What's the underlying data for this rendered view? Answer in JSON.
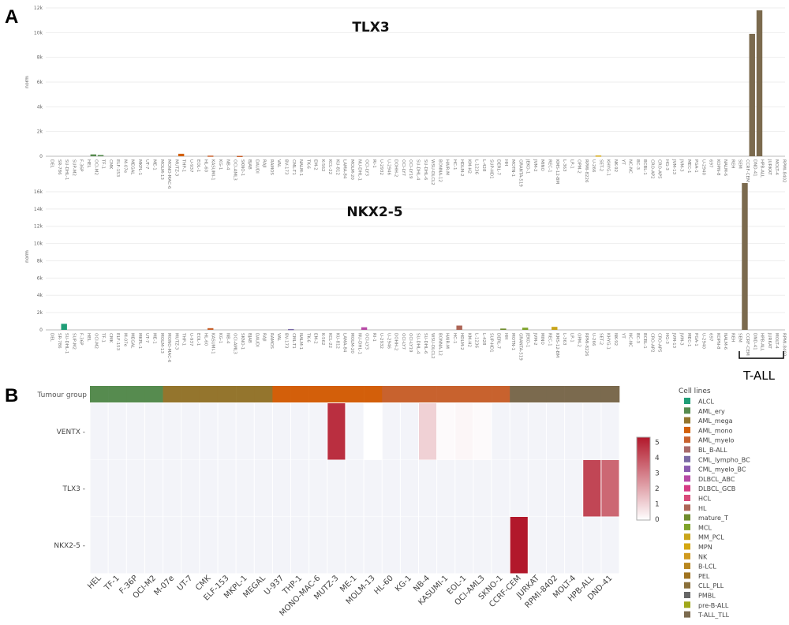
{
  "panels": {
    "a": "A",
    "b": "B"
  },
  "groups": [
    {
      "name": "ALCL",
      "color": "#1f9e77",
      "members": [
        "DEL",
        "SR-786",
        "SU-DHL-1",
        "SUP-M2"
      ]
    },
    {
      "name": "AML_ery",
      "color": "#568b4f",
      "members": [
        "F-36P",
        "HEL",
        "OCI-M2",
        "TF-1"
      ]
    },
    {
      "name": "AML_mega",
      "color": "#94752d",
      "members": [
        "CMK",
        "ELF-153",
        "M-07e",
        "MEGAL",
        "MKPL-1",
        "UT-7"
      ]
    },
    {
      "name": "AML_mono",
      "color": "#d35f0a",
      "members": [
        "ME-1",
        "MOLM-13",
        "MONO-MAC-6",
        "MUTZ-3",
        "THP-1",
        "U-937"
      ]
    },
    {
      "name": "AML_myelo",
      "color": "#c8622e",
      "members": [
        "EOL-1",
        "HL-60",
        "KASUMI-1",
        "KG-1",
        "NB-4",
        "OCI-AML3",
        "SKNO-1"
      ]
    },
    {
      "name": "BL_B-ALL",
      "color": "#a86a6a",
      "members": [
        "BJAB",
        "DAUDI",
        "RAJI",
        "RAMOS",
        "VAL"
      ]
    },
    {
      "name": "CML_lympho_BC",
      "color": "#7a6aa5",
      "members": [
        "BV-173",
        "CML-T1",
        "NALM-1",
        "TK-6"
      ]
    },
    {
      "name": "CML_myelo_BC",
      "color": "#8b5cb0",
      "members": [
        "EM-2",
        "K-562",
        "KCL-22",
        "KU-812",
        "LAMA-84",
        "MOLM-20"
      ]
    },
    {
      "name": "DLBCL_ABC",
      "color": "#b84aa6",
      "members": [
        "NU-DHL-1",
        "OCI-LY3",
        "RI-1",
        "U-2932"
      ]
    },
    {
      "name": "DLBCL_GCB",
      "color": "#d63a84",
      "members": [
        "U-2946",
        "DOHH-2",
        "OCI-LY7",
        "OCI-LY19",
        "SU-DHL-4",
        "SU-DHL-6",
        "WSU-DLCL2"
      ]
    },
    {
      "name": "HCL",
      "color": "#d94a7a",
      "members": [
        "BONNA-12",
        "HAIR-M",
        "HC-1"
      ]
    },
    {
      "name": "HL",
      "color": "#ad6556",
      "members": [
        "HDLM-2",
        "KM-H2",
        "L-1236",
        "L-428",
        "SUP-HD1"
      ]
    },
    {
      "name": "mature_T",
      "color": "#6f8c2d",
      "members": [
        "DERL-7",
        "HH",
        "MOTN-1"
      ]
    },
    {
      "name": "MCL",
      "color": "#7ea32a",
      "members": [
        "GRANTA-519",
        "JEKO-1",
        "JVM-2",
        "MINO",
        "REC-1"
      ]
    },
    {
      "name": "MM_PCL",
      "color": "#c9a51a",
      "members": [
        "KMS-12-BM",
        "L-363",
        "LP-1",
        "OPM-2",
        "RPMI-8226",
        "U-266"
      ]
    },
    {
      "name": "MPN",
      "color": "#d4a711",
      "members": [
        "SET-2"
      ]
    },
    {
      "name": "NK",
      "color": "#d09a1e",
      "members": [
        "KHYG-1",
        "NK-92",
        "YT"
      ]
    },
    {
      "name": "B-LCL",
      "color": "#b8861e",
      "members": [
        "NC-NC"
      ]
    },
    {
      "name": "PEL",
      "color": "#a0731f",
      "members": [
        "BC-3",
        "BCBL-1",
        "CRO-AP2",
        "CRO-AP5"
      ]
    },
    {
      "name": "CLL_PLL",
      "color": "#8a6f3a",
      "members": [
        "HG-3",
        "JVM-13",
        "JVM-3",
        "MEC-1",
        "PGA-1"
      ]
    },
    {
      "name": "PMBL",
      "color": "#666666",
      "members": [
        "U-2940"
      ]
    },
    {
      "name": "pre-B-ALL",
      "color": "#a0a81a",
      "members": [
        "697",
        "KOPN-8",
        "NALM-6",
        "REH",
        "SEM"
      ]
    },
    {
      "name": "T-ALL_TLL",
      "color": "#7b6a4e",
      "members": [
        "CCRF-CEM",
        "DND-41",
        "HPB-ALL",
        "JURKAT",
        "MOLT-4",
        "RPMI-8402"
      ]
    }
  ],
  "chart_data": [
    {
      "type": "bar",
      "title": "TLX3",
      "ylabel": "norm",
      "ylim": [
        0,
        12000
      ],
      "yticks": [
        "0",
        "2k",
        "4k",
        "6k",
        "8k",
        "10k",
        "12k"
      ],
      "grid": true,
      "values": {
        "OCI-M2": 150,
        "TF-1": 100,
        "THP-1": 200,
        "KASUMI-1": 50,
        "SKNO-1": 30,
        "SET-2": 60,
        "DND-41": 9900,
        "HPB-ALL": 11800
      }
    },
    {
      "type": "bar",
      "title": "NKX2-5",
      "ylabel": "norm",
      "ylim": [
        0,
        17000
      ],
      "yticks": [
        "0",
        "2k",
        "4k",
        "6k",
        "8k",
        "10k",
        "12k",
        "14k",
        "16k"
      ],
      "grid": true,
      "annotation": "T-ALL",
      "values": {
        "SU-DHL-1": 700,
        "KASUMI-1": 200,
        "CML-T1": 100,
        "OCI-LY3": 300,
        "HDLM-2": 500,
        "HH": 150,
        "JEKO-1": 250,
        "KMS-12-BM": 350,
        "CCRF-CEM": 17000
      }
    },
    {
      "type": "heatmap",
      "annotation_row_label": "Tumour group",
      "columns": [
        "HEL",
        "TF-1",
        "F-36P",
        "OCI-M2",
        "M-07e",
        "UT-7",
        "CMK",
        "ELF-153",
        "MKPL-1",
        "MEGAL",
        "U-937",
        "THP-1",
        "MONO-MAC-6",
        "MUTZ-3",
        "ME-1",
        "MOLM-13",
        "HL-60",
        "KG-1",
        "NB-4",
        "KASUMI-1",
        "EOL-1",
        "OCI-AML3",
        "SKNO-1",
        "CCRF-CEM",
        "JURKAT",
        "RPMI-8402",
        "MOLT-4",
        "HPB-ALL",
        "DND-41"
      ],
      "column_groups": [
        "AML_ery",
        "AML_ery",
        "AML_ery",
        "AML_ery",
        "AML_mega",
        "AML_mega",
        "AML_mega",
        "AML_mega",
        "AML_mega",
        "AML_mega",
        "AML_mono",
        "AML_mono",
        "AML_mono",
        "AML_mono",
        "AML_mono",
        "AML_mono",
        "AML_myelo",
        "AML_myelo",
        "AML_myelo",
        "AML_myelo",
        "AML_myelo",
        "AML_myelo",
        "AML_myelo",
        "T-ALL_TLL",
        "T-ALL_TLL",
        "T-ALL_TLL",
        "T-ALL_TLL",
        "T-ALL_TLL",
        "T-ALL_TLL"
      ],
      "rows": [
        "VENTX",
        "TLX3",
        "NKX2-5"
      ],
      "values": [
        [
          null,
          null,
          null,
          null,
          null,
          null,
          null,
          null,
          null,
          null,
          null,
          null,
          null,
          4.5,
          null,
          0,
          null,
          null,
          1.0,
          0.1,
          0.2,
          0.1,
          null,
          null,
          null,
          null,
          null,
          null,
          null
        ],
        [
          null,
          null,
          null,
          null,
          null,
          null,
          null,
          null,
          null,
          null,
          null,
          null,
          null,
          null,
          null,
          null,
          null,
          null,
          null,
          null,
          null,
          null,
          null,
          null,
          null,
          null,
          null,
          4.0,
          3.3
        ],
        [
          null,
          null,
          null,
          null,
          null,
          null,
          null,
          null,
          null,
          null,
          null,
          null,
          null,
          null,
          null,
          null,
          null,
          null,
          null,
          null,
          null,
          null,
          null,
          5.0,
          null,
          null,
          null,
          null,
          null
        ]
      ],
      "colorbar": {
        "min": 0,
        "max": 5,
        "ticks": [
          "0",
          "1",
          "2",
          "3",
          "4",
          "5"
        ],
        "low_color": "#ffffff",
        "high_color": "#b2182b"
      },
      "legend_title": "Cell lines"
    }
  ]
}
